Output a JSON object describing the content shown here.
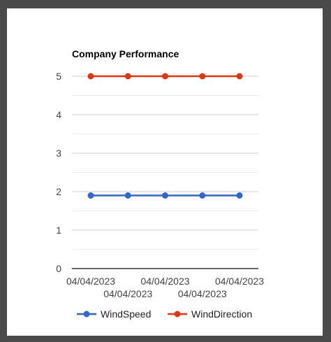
{
  "chart_data": {
    "type": "line",
    "title": "Company Performance",
    "categories": [
      "04/04/2023",
      "04/04/2023",
      "04/04/2023",
      "04/04/2023",
      "04/04/2023"
    ],
    "yticks": [
      0,
      1,
      2,
      3,
      4,
      5
    ],
    "ylim": [
      0,
      5
    ],
    "grid": true,
    "legend_position": "bottom",
    "series": [
      {
        "name": "WindSpeed",
        "values": [
          1.9,
          1.9,
          1.9,
          1.9,
          1.9
        ],
        "color": "#3366cc"
      },
      {
        "name": "WindDirection",
        "values": [
          5,
          5,
          5,
          5,
          5
        ],
        "color": "#dc3912"
      }
    ]
  }
}
